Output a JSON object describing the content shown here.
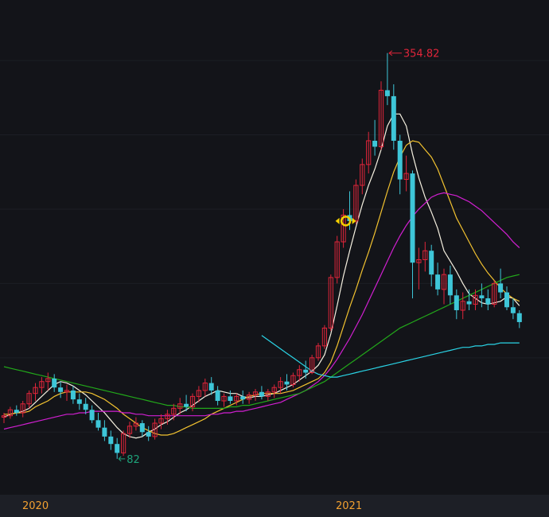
{
  "colors": {
    "background": "#131419",
    "bottom_axis": "#1d1f26",
    "up": "#e0253a",
    "down": "#3ec6d8",
    "ma5": "#f5f0e0",
    "ma10": "#f2c230",
    "ma20": "#e8c52a",
    "ma60": "#d11fd1",
    "ma120": "#22a81a",
    "ma250": "#2ad4e6",
    "high_label": "#e0253a",
    "low_label": "#1ea37a",
    "time_label": "#f2a030",
    "marker": "#f5d000"
  },
  "chart_data": {
    "type": "candlestick",
    "time_labels": [
      "2020",
      "2021"
    ],
    "annotations": {
      "high_label": "354.82",
      "low_label": "82"
    },
    "marker_icon": "circle-target-icon",
    "ylim": [
      60,
      380
    ],
    "candles": [
      [
        110,
        113,
        106,
        111
      ],
      [
        111,
        117,
        109,
        115
      ],
      [
        115,
        118,
        111,
        113
      ],
      [
        113,
        121,
        110,
        119
      ],
      [
        119,
        128,
        116,
        126
      ],
      [
        126,
        133,
        121,
        130
      ],
      [
        130,
        137,
        126,
        134
      ],
      [
        134,
        140,
        128,
        136
      ],
      [
        136,
        139,
        127,
        130
      ],
      [
        130,
        134,
        123,
        127
      ],
      [
        127,
        132,
        121,
        128
      ],
      [
        128,
        131,
        119,
        122
      ],
      [
        122,
        126,
        115,
        119
      ],
      [
        119,
        123,
        112,
        115
      ],
      [
        115,
        118,
        106,
        108
      ],
      [
        108,
        113,
        101,
        103
      ],
      [
        103,
        108,
        94,
        97
      ],
      [
        97,
        101,
        88,
        92
      ],
      [
        92,
        96,
        82,
        86
      ],
      [
        86,
        101,
        84,
        99
      ],
      [
        99,
        107,
        96,
        104
      ],
      [
        104,
        110,
        101,
        106
      ],
      [
        106,
        108,
        97,
        100
      ],
      [
        100,
        104,
        94,
        97
      ],
      [
        97,
        109,
        95,
        106
      ],
      [
        106,
        112,
        102,
        109
      ],
      [
        109,
        115,
        105,
        112
      ],
      [
        112,
        119,
        108,
        116
      ],
      [
        116,
        123,
        112,
        119
      ],
      [
        119,
        125,
        114,
        117
      ],
      [
        117,
        126,
        114,
        124
      ],
      [
        124,
        131,
        120,
        128
      ],
      [
        128,
        136,
        124,
        133
      ],
      [
        133,
        137,
        125,
        128
      ],
      [
        128,
        131,
        118,
        121
      ],
      [
        121,
        126,
        117,
        124
      ],
      [
        124,
        128,
        119,
        121
      ],
      [
        121,
        126,
        118,
        124
      ],
      [
        124,
        128,
        119,
        122
      ],
      [
        122,
        127,
        119,
        125
      ],
      [
        125,
        129,
        121,
        127
      ],
      [
        127,
        131,
        122,
        124
      ],
      [
        124,
        129,
        121,
        127
      ],
      [
        127,
        132,
        123,
        130
      ],
      [
        130,
        137,
        126,
        134
      ],
      [
        134,
        139,
        128,
        132
      ],
      [
        132,
        140,
        130,
        138
      ],
      [
        138,
        145,
        134,
        142
      ],
      [
        142,
        148,
        136,
        140
      ],
      [
        140,
        152,
        139,
        150
      ],
      [
        150,
        160,
        148,
        158
      ],
      [
        158,
        172,
        156,
        170
      ],
      [
        170,
        206,
        168,
        204
      ],
      [
        204,
        232,
        200,
        228
      ],
      [
        228,
        250,
        224,
        246
      ],
      [
        246,
        262,
        236,
        242
      ],
      [
        242,
        270,
        240,
        266
      ],
      [
        266,
        284,
        260,
        280
      ],
      [
        280,
        302,
        274,
        296
      ],
      [
        296,
        310,
        286,
        292
      ],
      [
        292,
        336,
        290,
        330
      ],
      [
        330,
        355,
        320,
        326
      ],
      [
        326,
        334,
        290,
        296
      ],
      [
        296,
        300,
        260,
        270
      ],
      [
        270,
        286,
        262,
        274
      ],
      [
        274,
        276,
        190,
        214
      ],
      [
        214,
        224,
        196,
        216
      ],
      [
        216,
        228,
        208,
        222
      ],
      [
        222,
        226,
        198,
        206
      ],
      [
        206,
        214,
        192,
        196
      ],
      [
        196,
        210,
        186,
        206
      ],
      [
        206,
        212,
        186,
        192
      ],
      [
        192,
        196,
        176,
        182
      ],
      [
        182,
        194,
        176,
        188
      ],
      [
        188,
        196,
        182,
        186
      ],
      [
        186,
        196,
        182,
        192
      ],
      [
        192,
        200,
        184,
        190
      ],
      [
        190,
        196,
        182,
        186
      ],
      [
        186,
        202,
        184,
        200
      ],
      [
        200,
        210,
        190,
        194
      ],
      [
        194,
        198,
        182,
        184
      ],
      [
        184,
        190,
        176,
        180
      ],
      [
        180,
        182,
        170,
        174
      ]
    ],
    "moving_averages": [
      {
        "key": "ma5",
        "values": [
          110,
          112,
          113,
          114,
          116,
          120,
          124,
          128,
          132,
          134,
          133,
          131,
          128,
          125,
          121,
          117,
          113,
          108,
          103,
          99,
          97,
          96,
          97,
          100,
          102,
          105,
          107,
          110,
          113,
          115,
          118,
          121,
          124,
          126,
          128,
          127,
          126,
          126,
          124,
          123,
          124,
          124,
          125,
          126,
          128,
          130,
          132,
          135,
          138,
          141,
          145,
          152,
          166,
          185,
          205,
          222,
          238,
          253,
          266,
          277,
          290,
          306,
          314,
          314,
          306,
          287,
          271,
          258,
          248,
          237,
          222,
          215,
          208,
          200,
          193,
          190,
          187,
          186,
          187,
          188,
          191,
          190,
          185
        ]
      },
      {
        "key": "ma10",
        "values": [
          112,
          112,
          113,
          113,
          114,
          117,
          119,
          121,
          124,
          126,
          127,
          127,
          127,
          127,
          126,
          124,
          122,
          119,
          116,
          112,
          109,
          106,
          103,
          101,
          99,
          98,
          98,
          99,
          101,
          103,
          105,
          107,
          109,
          112,
          114,
          116,
          118,
          120,
          122,
          124,
          125,
          126,
          126,
          126,
          126,
          127,
          128,
          130,
          132,
          134,
          136,
          140,
          147,
          158,
          171,
          184,
          196,
          209,
          221,
          234,
          248,
          262,
          275,
          285,
          293,
          296,
          295,
          290,
          285,
          277,
          266,
          255,
          244,
          236,
          228,
          220,
          213,
          207,
          202,
          197,
          193,
          190,
          188
        ]
      },
      {
        "key": "ma60",
        "values": [
          102,
          103,
          104,
          105,
          106,
          107,
          108,
          109,
          110,
          111,
          112,
          112,
          113,
          113,
          114,
          114,
          114,
          114,
          114,
          113,
          113,
          112,
          112,
          111,
          111,
          111,
          111,
          111,
          111,
          111,
          111,
          111,
          111,
          112,
          112,
          113,
          113,
          114,
          114,
          115,
          116,
          117,
          118,
          119,
          120,
          122,
          124,
          126,
          128,
          131,
          134,
          138,
          143,
          149,
          156,
          163,
          171,
          179,
          188,
          197,
          206,
          215,
          224,
          232,
          239,
          245,
          250,
          254,
          258,
          260,
          261,
          260,
          259,
          257,
          255,
          252,
          249,
          245,
          241,
          237,
          233,
          228,
          224
        ]
      },
      {
        "key": "ma120",
        "values": [
          144,
          143,
          142,
          141,
          140,
          139,
          138,
          137,
          136,
          135,
          134,
          133,
          132,
          131,
          130,
          129,
          128,
          127,
          126,
          125,
          124,
          123,
          122,
          121,
          120,
          119,
          118,
          118,
          117,
          117,
          116,
          116,
          116,
          116,
          116,
          116,
          117,
          117,
          118,
          118,
          119,
          120,
          121,
          122,
          123,
          124,
          125,
          126,
          128,
          130,
          132,
          134,
          137,
          140,
          143,
          146,
          149,
          152,
          155,
          158,
          161,
          164,
          167,
          170,
          172,
          174,
          176,
          178,
          180,
          182,
          184,
          186,
          188,
          190,
          192,
          194,
          196,
          198,
          200,
          202,
          204,
          205,
          206
        ]
      },
      {
        "key": "ma250",
        "values": [
          null,
          null,
          null,
          null,
          null,
          null,
          null,
          null,
          null,
          null,
          null,
          null,
          null,
          null,
          null,
          null,
          null,
          null,
          null,
          null,
          null,
          null,
          null,
          null,
          null,
          null,
          null,
          null,
          null,
          null,
          null,
          null,
          null,
          null,
          null,
          null,
          null,
          null,
          null,
          null,
          null,
          165,
          162,
          159,
          156,
          153,
          150,
          147,
          144,
          141,
          139,
          138,
          137,
          137,
          138,
          139,
          140,
          141,
          142,
          143,
          144,
          145,
          146,
          147,
          148,
          149,
          150,
          151,
          152,
          153,
          154,
          155,
          156,
          157,
          157,
          158,
          158,
          159,
          159,
          160,
          160,
          160,
          160
        ]
      }
    ]
  }
}
